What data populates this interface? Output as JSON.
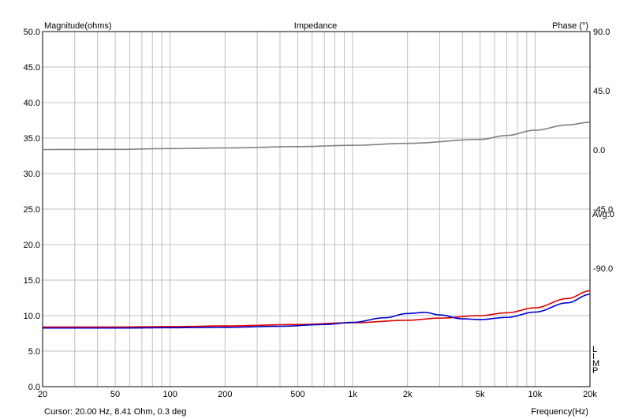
{
  "chart_data": {
    "type": "line",
    "title": "Impedance",
    "ylabel": "Magnitude(ohms)",
    "y2label": "Phase (°)",
    "xlabel": "Frequency(Hz)",
    "cursor_text": "Cursor: 20.00 Hz, 8.41 Ohm, 0.3 deg",
    "avg_label": "Avg:0",
    "limp_label": "L I M P",
    "x_scale": "log",
    "xlim": [
      20,
      20000
    ],
    "ylim": [
      0,
      50
    ],
    "y2lim": [
      -180,
      90
    ],
    "grid": true,
    "x_ticks": [
      20,
      50,
      100,
      200,
      500,
      1000,
      2000,
      5000,
      10000,
      20000
    ],
    "x_tick_labels": [
      "20",
      "50",
      "100",
      "200",
      "500",
      "1k",
      "2k",
      "5k",
      "10k",
      "20k"
    ],
    "y_ticks": [
      0,
      5,
      10,
      15,
      20,
      25,
      30,
      35,
      40,
      45,
      50
    ],
    "y_tick_labels": [
      "0.0",
      "5.0",
      "10.0",
      "15.0",
      "20.0",
      "25.0",
      "30.0",
      "35.0",
      "40.0",
      "45.0",
      "50.0"
    ],
    "y2_ticks": [
      90,
      45,
      0,
      -45,
      -90
    ],
    "y2_tick_labels": [
      "90.0",
      "45.0",
      "0.0",
      "-45.0",
      "-90.0"
    ],
    "colors": {
      "red": "#e00000",
      "blue": "#0000d0",
      "phase": "#808080",
      "grid": "#c0c0c0"
    },
    "series": [
      {
        "color": "#e00000",
        "axis": "left",
        "x": [
          20,
          50,
          100,
          200,
          500,
          1000,
          2000,
          3000,
          5000,
          7000,
          10000,
          15000,
          20000
        ],
        "y": [
          8.4,
          8.4,
          8.45,
          8.55,
          8.75,
          9.0,
          9.35,
          9.65,
          10.0,
          10.4,
          11.1,
          12.4,
          13.5
        ]
      },
      {
        "color": "#0000d0",
        "axis": "left",
        "x": [
          20,
          50,
          100,
          200,
          400,
          700,
          1000,
          1500,
          2000,
          2500,
          3000,
          4000,
          5000,
          7000,
          10000,
          15000,
          20000
        ],
        "y": [
          8.25,
          8.25,
          8.3,
          8.35,
          8.5,
          8.75,
          9.05,
          9.7,
          10.3,
          10.45,
          10.1,
          9.55,
          9.45,
          9.75,
          10.5,
          11.8,
          13.0
        ]
      },
      {
        "color": "#808080",
        "axis": "right",
        "x": [
          20,
          50,
          100,
          200,
          500,
          1000,
          2000,
          5000,
          7000,
          10000,
          15000,
          20000
        ],
        "y": [
          0.3,
          0.4,
          1.0,
          1.5,
          2.5,
          3.5,
          5.0,
          8.0,
          11.0,
          15.0,
          19.0,
          21.0
        ]
      }
    ]
  }
}
